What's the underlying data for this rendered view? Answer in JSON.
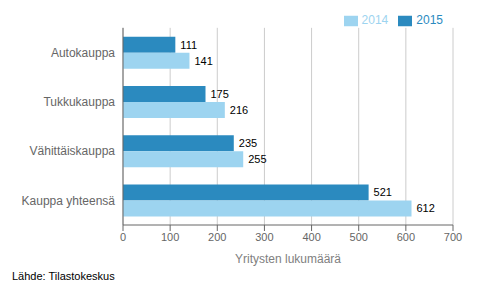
{
  "chart_data": {
    "type": "bar",
    "orientation": "horizontal",
    "categories": [
      "Kauppa yhteensä",
      "Vähittäiskauppa",
      "Tukkukauppa",
      "Autokauppa"
    ],
    "series": [
      {
        "name": "2015",
        "color": "#2b8abf",
        "values": [
          521,
          235,
          175,
          111
        ]
      },
      {
        "name": "2014",
        "color": "#9dd4f0",
        "values": [
          612,
          255,
          216,
          141
        ]
      }
    ],
    "xlabel": "Yritysten lukumäärä",
    "xlim": [
      0,
      700
    ],
    "xticks": [
      0,
      100,
      200,
      300,
      400,
      500,
      600,
      700
    ],
    "grid": true,
    "legend": "upper right",
    "data_labels": true,
    "annotations": [
      "Lähde: Tilastokeskus"
    ]
  }
}
